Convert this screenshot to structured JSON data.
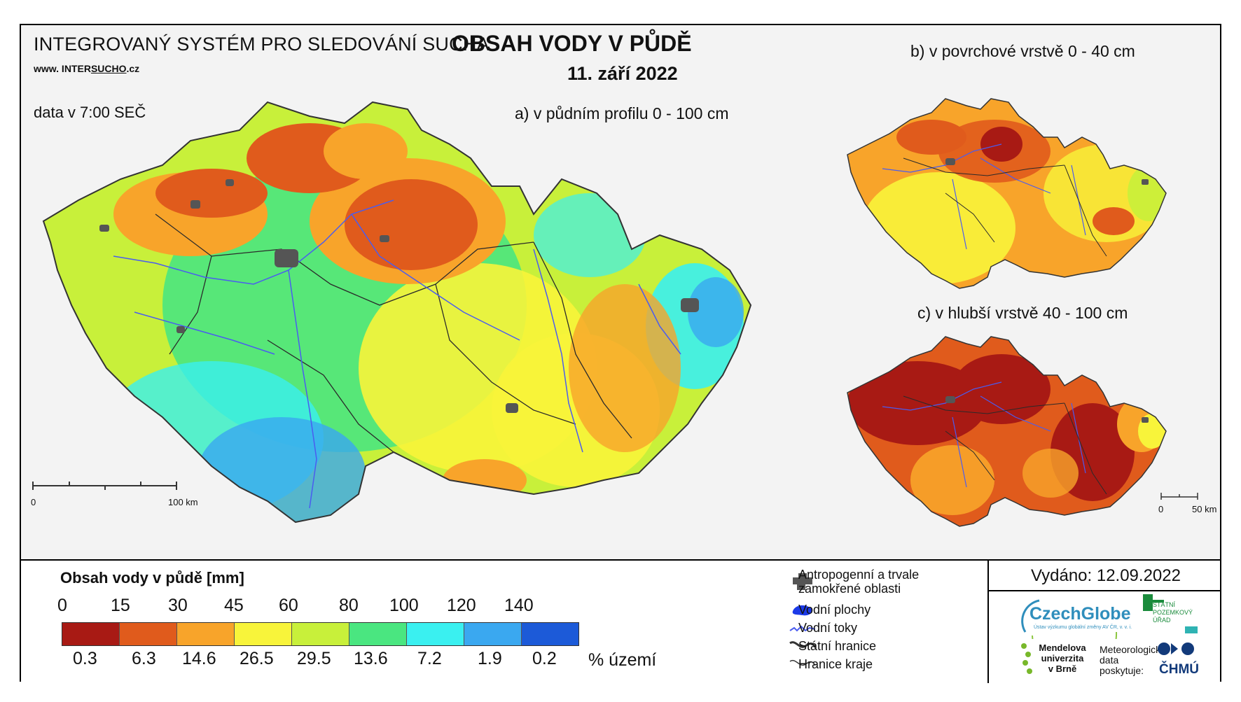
{
  "header": {
    "system_name": "INTEGROVANÝ SYSTÉM PRO SLEDOVÁNÍ SUCHA",
    "website_prefix": "www. INTER",
    "website_brand": "SUCHO",
    "website_suffix": ".cz",
    "data_time": "data v 7:00 SEČ",
    "title": "OBSAH VODY V PŮDĚ",
    "date": "11. září 2022"
  },
  "maps": {
    "a_label": "a) v půdním profilu 0 - 100 cm",
    "b_label": "b) v povrchové vrstvě 0 - 40 cm",
    "c_label": "c) v hlubší vrstvě 40 - 100 cm",
    "scale_a": {
      "start": "0",
      "end": "100 km"
    },
    "scale_c": {
      "start": "0",
      "end": "50 km"
    }
  },
  "legend": {
    "title": "Obsah vody v půdě  [mm]",
    "ticks": [
      "0",
      "15",
      "30",
      "45",
      "60",
      "80",
      "100",
      "120",
      "140"
    ],
    "classes": [
      {
        "color": "#a81a14",
        "percent": "0.3"
      },
      {
        "color": "#e05b1c",
        "percent": "6.3"
      },
      {
        "color": "#f8a42a",
        "percent": "14.6"
      },
      {
        "color": "#f8f43a",
        "percent": "26.5"
      },
      {
        "color": "#c8f03a",
        "percent": "29.5"
      },
      {
        "color": "#4ae680",
        "percent": "13.6"
      },
      {
        "color": "#3af0f0",
        "percent": "7.2"
      },
      {
        "color": "#3aa8f0",
        "percent": "1.9"
      },
      {
        "color": "#1c5ad8",
        "percent": "0.2"
      }
    ],
    "percent_unit": "% území"
  },
  "symbols": {
    "anthropogenic": "Antropogenní a trvale zamokřené oblasti",
    "water_bodies": "Vodní plochy",
    "streams": "Vodní toky",
    "state_border": "Státní hranice",
    "region_border": "Hranice kraje"
  },
  "footer": {
    "issued": "Vydáno: 12.09.2022",
    "logo_czechglobe": "CzechGlobe",
    "logo_czechglobe_sub": "Ústav výzkumu globální změny AV ČR, v. v. i.",
    "logo_spu": "STÁTNÍ POZEMKOVÝ ÚŘAD",
    "logo_mendel": "Mendelova univerzita v Brně",
    "logo_met": "Meteorologická data poskytuje:",
    "logo_chmu": "ČHMÚ"
  }
}
